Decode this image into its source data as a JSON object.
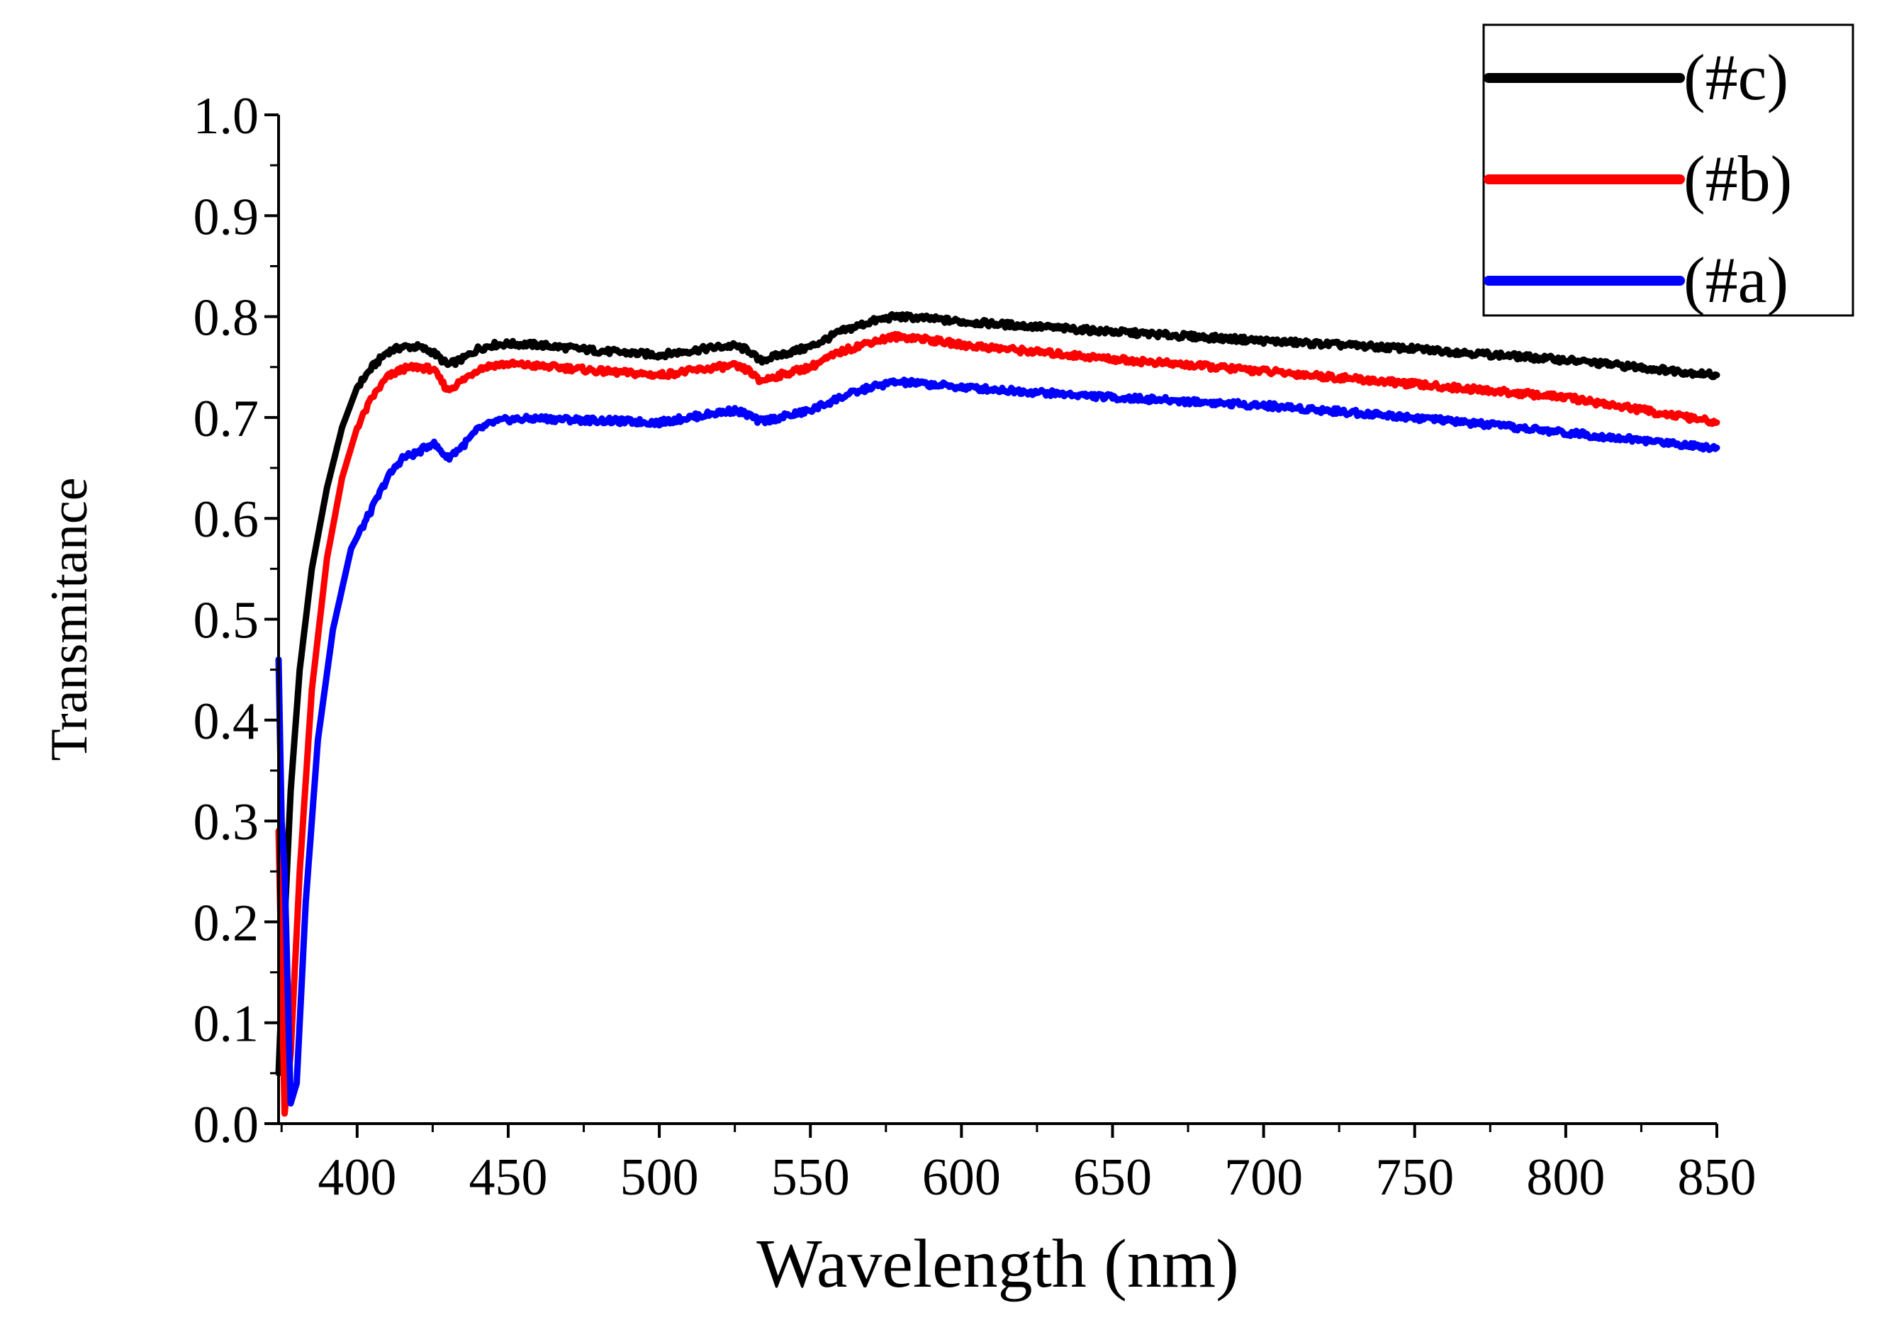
{
  "chart_data": {
    "type": "line",
    "title": "",
    "xlabel": "Wavelength (nm)",
    "ylabel": "Transmitance",
    "xlim": [
      374,
      850
    ],
    "ylim": [
      0.0,
      1.0
    ],
    "x_ticks": [
      400,
      450,
      500,
      550,
      600,
      650,
      700,
      750,
      800,
      850
    ],
    "y_ticks": [
      "0.0",
      "0.1",
      "0.2",
      "0.3",
      "0.4",
      "0.5",
      "0.6",
      "0.7",
      "0.8",
      "0.9",
      "1.0"
    ],
    "grid": false,
    "legend_position": "top-right",
    "series": [
      {
        "name": "(#c)",
        "color": "#000000",
        "x": [
          374,
          376,
          378,
          381,
          385,
          390,
          395,
          400,
          405,
          410,
          415,
          420,
          425,
          430,
          435,
          440,
          445,
          450,
          460,
          470,
          480,
          490,
          500,
          510,
          520,
          525,
          530,
          533,
          540,
          550,
          560,
          570,
          578,
          585,
          600,
          650,
          700,
          750,
          800,
          850
        ],
        "y": [
          0.05,
          0.2,
          0.33,
          0.45,
          0.55,
          0.63,
          0.69,
          0.73,
          0.75,
          0.765,
          0.77,
          0.77,
          0.765,
          0.752,
          0.758,
          0.768,
          0.772,
          0.773,
          0.772,
          0.769,
          0.766,
          0.764,
          0.762,
          0.766,
          0.77,
          0.771,
          0.766,
          0.756,
          0.762,
          0.77,
          0.785,
          0.795,
          0.8,
          0.799,
          0.795,
          0.785,
          0.776,
          0.768,
          0.757,
          0.742
        ]
      },
      {
        "name": "(#b)",
        "color": "#ff0000",
        "x": [
          374,
          376,
          378,
          381,
          385,
          390,
          395,
          400,
          405,
          410,
          415,
          420,
          425,
          430,
          435,
          440,
          445,
          450,
          460,
          470,
          480,
          490,
          500,
          510,
          520,
          525,
          530,
          533,
          540,
          550,
          560,
          570,
          578,
          585,
          600,
          650,
          700,
          750,
          800,
          850
        ],
        "y": [
          0.29,
          0.01,
          0.07,
          0.25,
          0.43,
          0.56,
          0.64,
          0.69,
          0.72,
          0.74,
          0.748,
          0.75,
          0.748,
          0.727,
          0.737,
          0.748,
          0.752,
          0.753,
          0.751,
          0.749,
          0.746,
          0.744,
          0.742,
          0.746,
          0.75,
          0.751,
          0.746,
          0.736,
          0.742,
          0.75,
          0.765,
          0.775,
          0.78,
          0.779,
          0.772,
          0.758,
          0.746,
          0.733,
          0.72,
          0.695
        ]
      },
      {
        "name": "(#a)",
        "color": "#0000ff",
        "x": [
          374,
          375,
          376,
          378,
          380,
          383,
          387,
          392,
          398,
          405,
          410,
          415,
          420,
          425,
          430,
          435,
          440,
          445,
          450,
          460,
          470,
          480,
          490,
          500,
          510,
          520,
          525,
          530,
          533,
          540,
          550,
          560,
          570,
          578,
          585,
          600,
          650,
          700,
          750,
          800,
          850
        ],
        "y": [
          0.46,
          0.3,
          0.25,
          0.02,
          0.04,
          0.22,
          0.38,
          0.49,
          0.57,
          0.61,
          0.64,
          0.66,
          0.665,
          0.675,
          0.66,
          0.672,
          0.688,
          0.695,
          0.698,
          0.699,
          0.698,
          0.697,
          0.696,
          0.695,
          0.7,
          0.705,
          0.707,
          0.702,
          0.696,
          0.7,
          0.707,
          0.72,
          0.73,
          0.735,
          0.734,
          0.73,
          0.72,
          0.712,
          0.7,
          0.685,
          0.67
        ]
      }
    ]
  }
}
